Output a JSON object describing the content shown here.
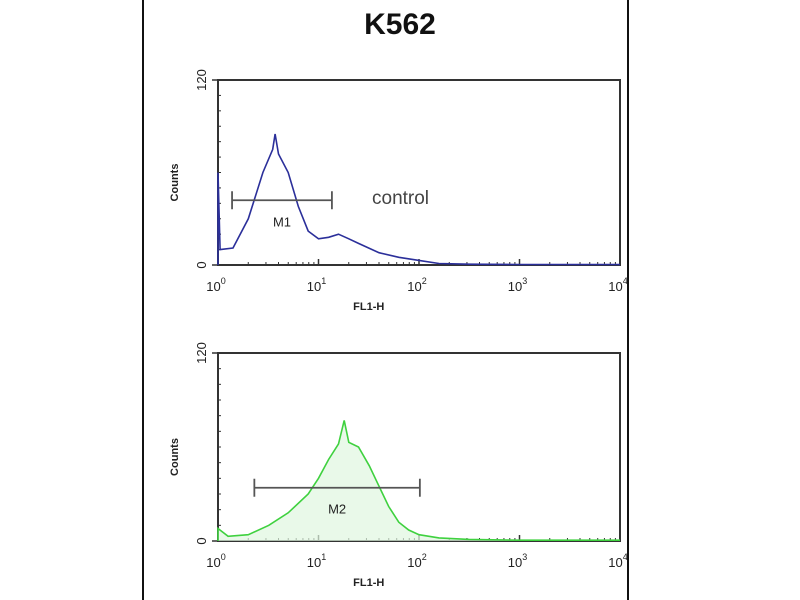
{
  "title": "K562",
  "chart_data": [
    {
      "type": "line",
      "xscale": "log",
      "xlim": [
        1,
        10000
      ],
      "ylim": [
        0,
        120
      ],
      "xlabel": "FL1-H",
      "ylabel": "Counts",
      "xticks": [
        "10^0",
        "10^1",
        "10^2",
        "10^3",
        "10^4"
      ],
      "yticks": [
        "0",
        "120"
      ],
      "color": "#2b2f9a",
      "annotation": "control",
      "gate": {
        "label": "M1",
        "x_range": [
          1.38,
          13.6
        ],
        "y": 42
      },
      "points": [
        [
          1,
          60
        ],
        [
          1.05,
          10
        ],
        [
          1.41,
          11
        ],
        [
          2,
          30
        ],
        [
          2.8,
          60
        ],
        [
          3.5,
          75
        ],
        [
          3.7,
          85
        ],
        [
          4,
          72
        ],
        [
          5,
          60
        ],
        [
          6.3,
          38
        ],
        [
          7.9,
          22
        ],
        [
          10,
          17
        ],
        [
          12.6,
          18
        ],
        [
          15.8,
          20
        ],
        [
          20,
          17
        ],
        [
          25,
          14
        ],
        [
          40,
          8
        ],
        [
          63,
          5
        ],
        [
          100,
          3
        ],
        [
          158,
          1
        ],
        [
          316,
          0.5
        ],
        [
          1000,
          0.3
        ],
        [
          10000,
          0.3
        ]
      ]
    },
    {
      "type": "line",
      "xscale": "log",
      "xlim": [
        1,
        10000
      ],
      "ylim": [
        0,
        120
      ],
      "xlabel": "FL1-H",
      "ylabel": "Counts",
      "xticks": [
        "10^0",
        "10^1",
        "10^2",
        "10^3",
        "10^4"
      ],
      "yticks": [
        "0",
        "120"
      ],
      "color": "#3fd13f",
      "gate": {
        "label": "M2",
        "x_range": [
          2.3,
          102
        ],
        "y": 34
      },
      "points": [
        [
          1,
          8
        ],
        [
          1.26,
          3
        ],
        [
          2,
          4
        ],
        [
          3.2,
          10
        ],
        [
          5,
          18
        ],
        [
          7.9,
          30
        ],
        [
          10,
          40
        ],
        [
          12.6,
          52
        ],
        [
          15.8,
          62
        ],
        [
          18,
          77
        ],
        [
          20,
          63
        ],
        [
          25,
          60
        ],
        [
          32,
          48
        ],
        [
          40,
          35
        ],
        [
          50,
          22
        ],
        [
          63,
          12
        ],
        [
          79,
          7
        ],
        [
          100,
          4
        ],
        [
          158,
          2
        ],
        [
          316,
          1
        ],
        [
          1000,
          0.5
        ],
        [
          10000,
          0.5
        ]
      ]
    }
  ]
}
